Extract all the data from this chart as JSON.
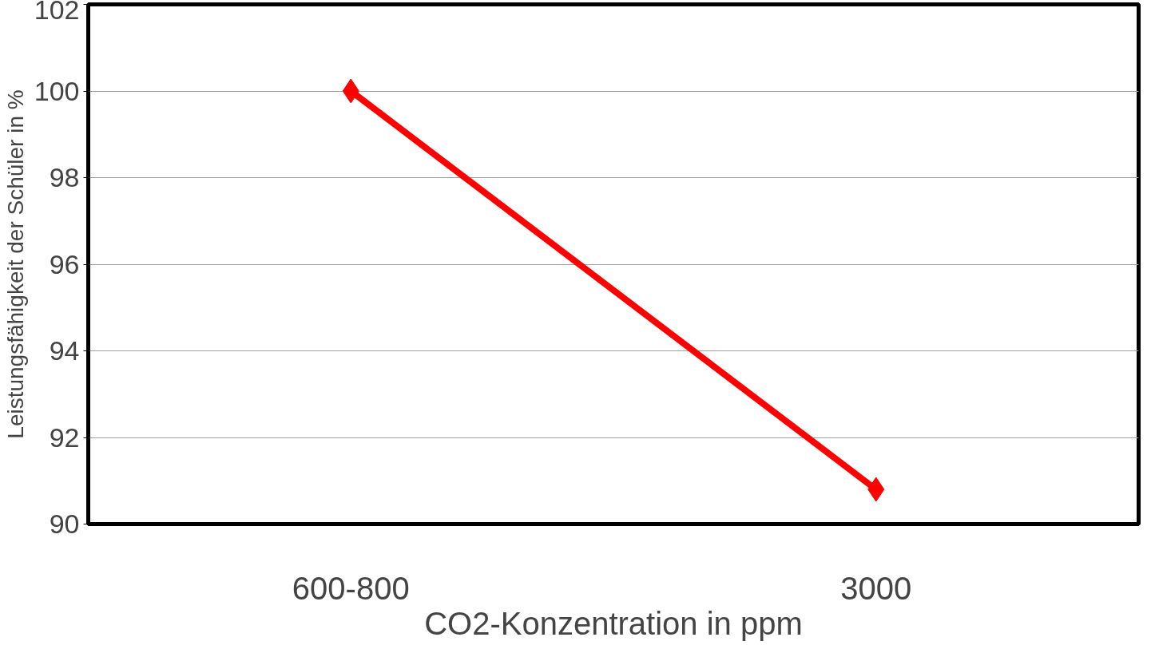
{
  "chart_data": {
    "type": "line",
    "xlabel": "CO2-Konzentration in ppm",
    "ylabel": "Leistungsfähigkeit der Schüler in %",
    "categories": [
      "600-800",
      "3000"
    ],
    "series": [
      {
        "color": "#ff0000",
        "values": [
          100,
          90.8
        ]
      }
    ],
    "ylim": [
      90,
      102
    ],
    "yticks": [
      90,
      92,
      94,
      96,
      98,
      100,
      102
    ],
    "grid": "y",
    "marker": "diamond",
    "line_style": "solid"
  }
}
